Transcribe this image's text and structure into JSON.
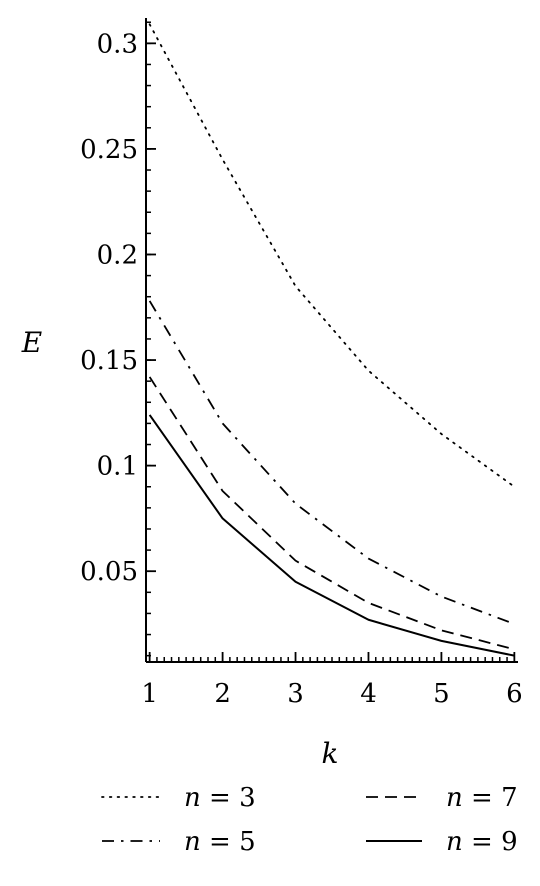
{
  "chart_data": {
    "type": "line",
    "xlabel": "k",
    "ylabel": "E",
    "xlim": [
      0.95,
      6.05
    ],
    "ylim": [
      0.007,
      0.312
    ],
    "x_ticks": [
      1,
      2,
      3,
      4,
      5,
      6
    ],
    "x_tick_labels": [
      "1",
      "2",
      "3",
      "4",
      "5",
      "6"
    ],
    "y_ticks": [
      0.05,
      0.1,
      0.15,
      0.2,
      0.25,
      0.3
    ],
    "y_tick_labels": [
      "0.05",
      "0.1",
      "0.15",
      "0.2",
      "0.25",
      "0.3"
    ],
    "grid": false,
    "legend_position": "bottom",
    "x": [
      1,
      2,
      3,
      4,
      5,
      6
    ],
    "series": [
      {
        "name": "n = 3",
        "style": "dotted",
        "values": [
          0.309,
          0.245,
          0.185,
          0.145,
          0.115,
          0.09
        ]
      },
      {
        "name": "n = 5",
        "style": "dashdot",
        "values": [
          0.178,
          0.12,
          0.082,
          0.056,
          0.038,
          0.025
        ]
      },
      {
        "name": "n = 7",
        "style": "dashed",
        "values": [
          0.142,
          0.088,
          0.055,
          0.035,
          0.022,
          0.013
        ]
      },
      {
        "name": "n = 9",
        "style": "solid",
        "values": [
          0.124,
          0.075,
          0.045,
          0.027,
          0.017,
          0.01
        ]
      }
    ],
    "legend": [
      {
        "n": "n",
        "rest": " = 3"
      },
      {
        "n": "n",
        "rest": " = 5"
      },
      {
        "n": "n",
        "rest": " = 7"
      },
      {
        "n": "n",
        "rest": " = 9"
      }
    ]
  },
  "colors": {
    "line": "#000000",
    "background": "#ffffff"
  }
}
